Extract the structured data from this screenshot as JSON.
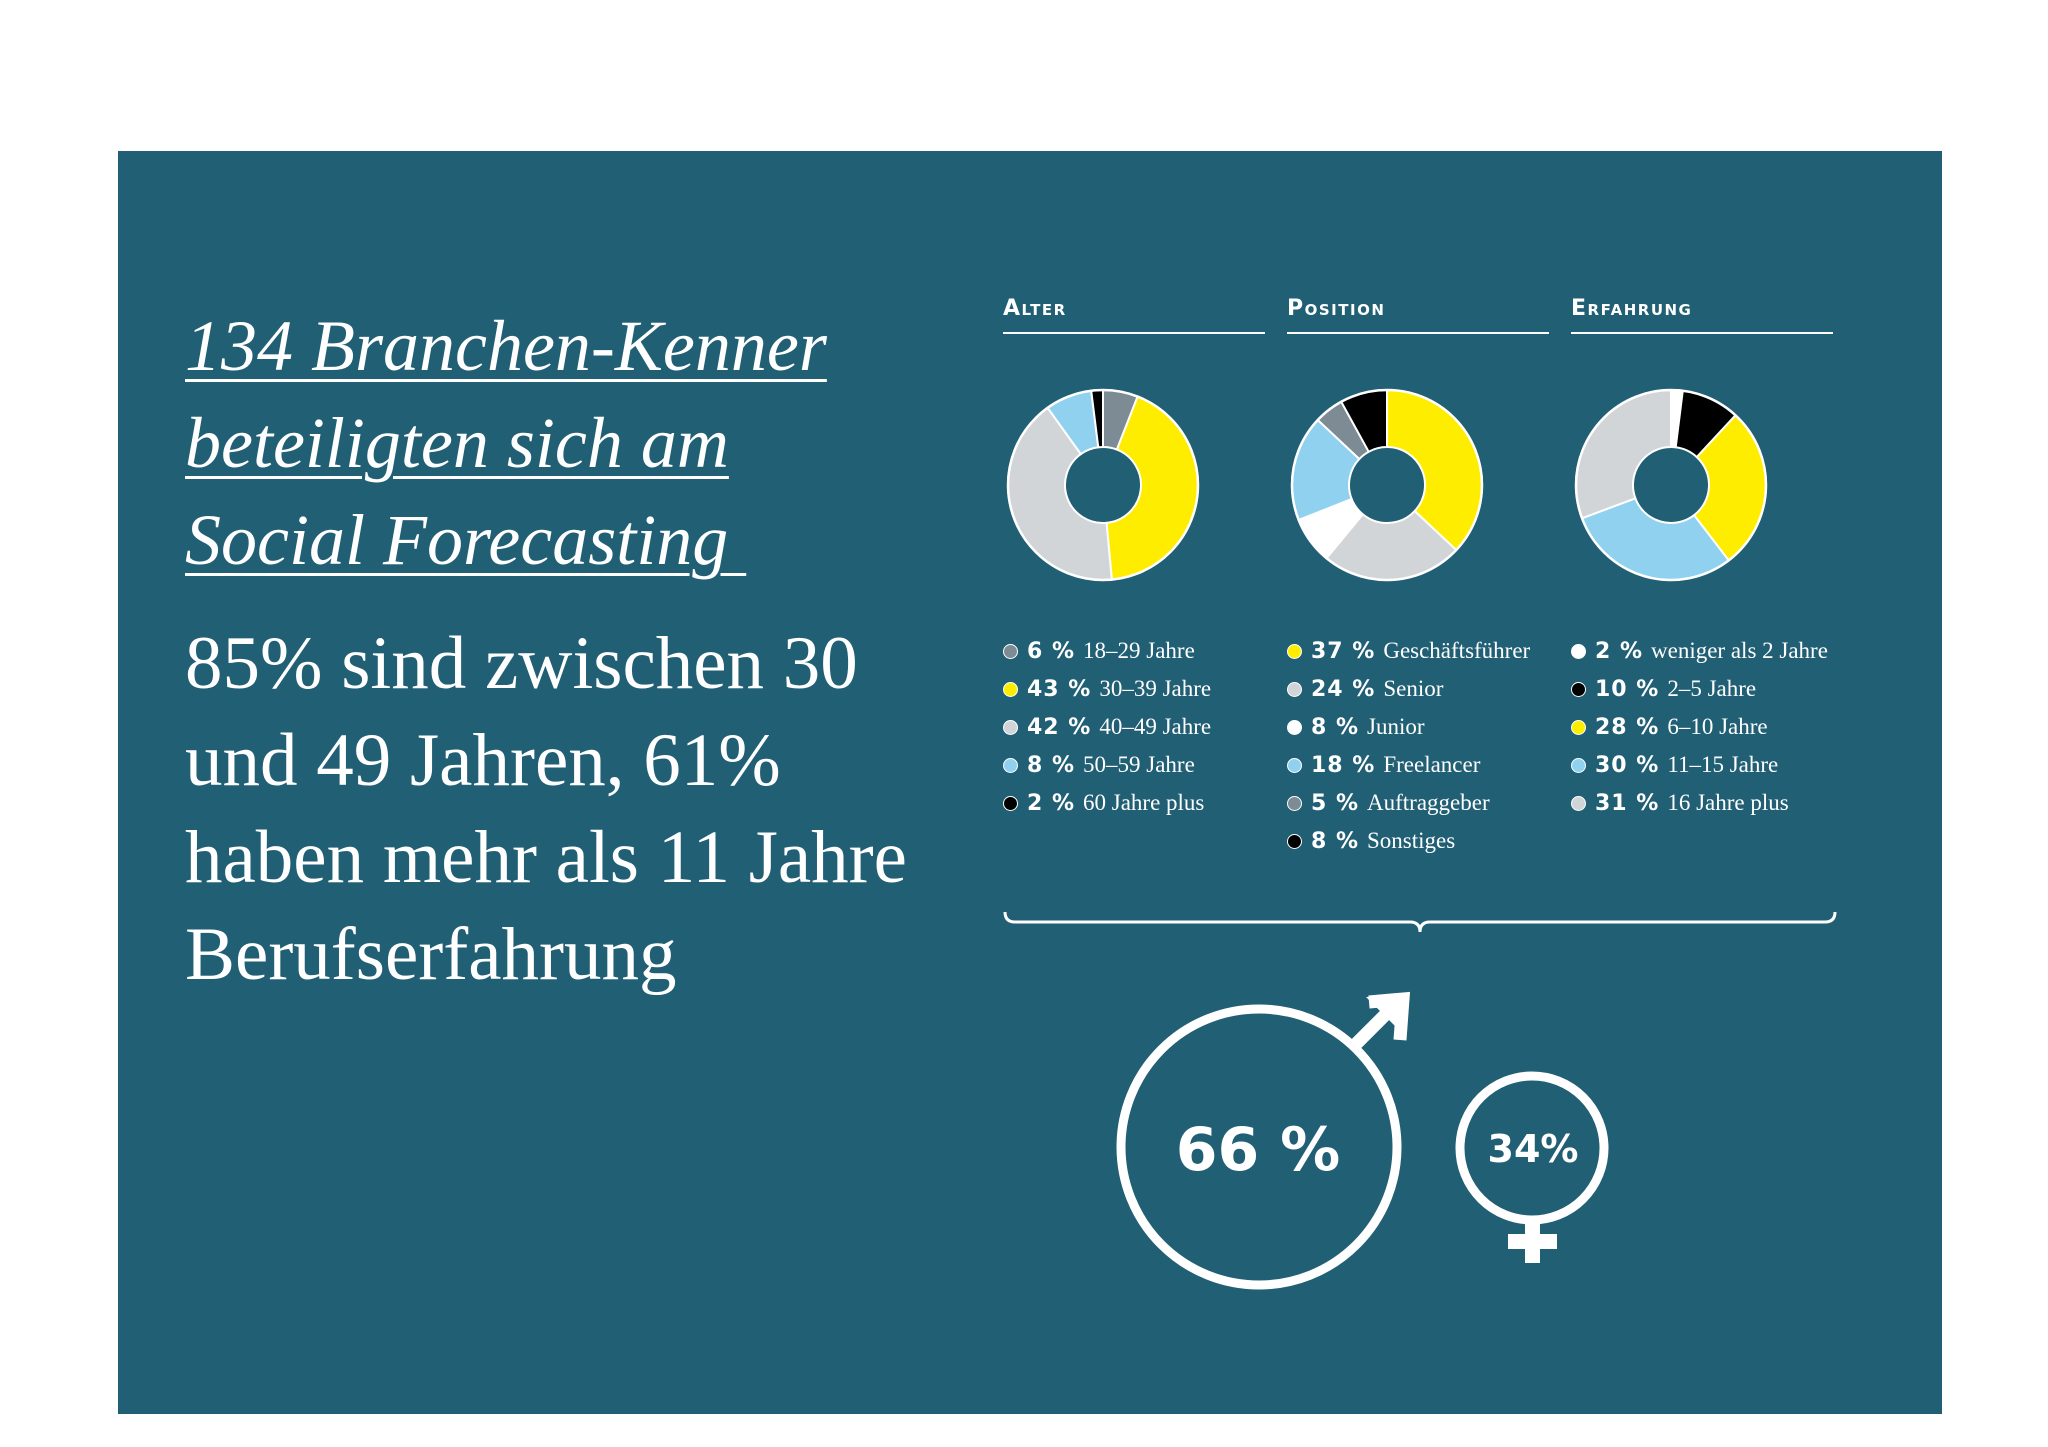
{
  "headline": {
    "line1": "134 Branchen-Kenner",
    "line2": "beteiligten sich am",
    "line3": "Social Forecasting "
  },
  "summary": "85% sind zwischen 30 und 49 Jahren, 61% haben mehr als 11 Jahre Berufserfahrung",
  "colors": {
    "background": "#215f75",
    "yellow": "#ffed00",
    "light_gray": "#d2d5d8",
    "dark_gray": "#7d8b95",
    "light_blue": "#8fd1ef",
    "white": "#ffffff",
    "black": "#000000"
  },
  "chart_data": [
    {
      "type": "pie",
      "title": "Alter",
      "slices": [
        {
          "value": 6,
          "pct": "6 %",
          "label": "18–29 Jahre",
          "color": "#7d8b95"
        },
        {
          "value": 43,
          "pct": "43 %",
          "label": "30–39 Jahre",
          "color": "#ffed00"
        },
        {
          "value": 42,
          "pct": "42 %",
          "label": "40–49 Jahre",
          "color": "#d2d5d8"
        },
        {
          "value": 8,
          "pct": "8 %",
          "label": "50–59 Jahre",
          "color": "#8fd1ef"
        },
        {
          "value": 2,
          "pct": "2 %",
          "label": "60 Jahre plus",
          "color": "#000000"
        }
      ]
    },
    {
      "type": "pie",
      "title": "Position",
      "slices": [
        {
          "value": 37,
          "pct": "37 %",
          "label": "Geschäftsführer",
          "color": "#ffed00"
        },
        {
          "value": 24,
          "pct": "24 %",
          "label": "Senior",
          "color": "#d2d5d8"
        },
        {
          "value": 8,
          "pct": "8 %",
          "label": "Junior",
          "color": "#ffffff"
        },
        {
          "value": 18,
          "pct": "18 %",
          "label": "Freelancer",
          "color": "#8fd1ef"
        },
        {
          "value": 5,
          "pct": "5 %",
          "label": "Auftraggeber",
          "color": "#7d8b95"
        },
        {
          "value": 8,
          "pct": "8 %",
          "label": "Sonstiges",
          "color": "#000000"
        }
      ]
    },
    {
      "type": "pie",
      "title": "Erfahrung",
      "slices": [
        {
          "value": 2,
          "pct": "2 %",
          "label": "weniger als 2 Jahre",
          "color": "#ffffff"
        },
        {
          "value": 10,
          "pct": "10 %",
          "label": "2–5 Jahre",
          "color": "#000000"
        },
        {
          "value": 28,
          "pct": "28 %",
          "label": "6–10 Jahre",
          "color": "#ffed00"
        },
        {
          "value": 30,
          "pct": "30 %",
          "label": "11–15 Jahre",
          "color": "#8fd1ef"
        },
        {
          "value": 31,
          "pct": "31 %",
          "label": "16 Jahre plus",
          "color": "#d2d5d8"
        }
      ]
    },
    {
      "type": "other",
      "series": [
        {
          "name": "male",
          "value": 66,
          "label": "66 %"
        },
        {
          "name": "female",
          "value": 34,
          "label": "34%"
        }
      ]
    }
  ]
}
